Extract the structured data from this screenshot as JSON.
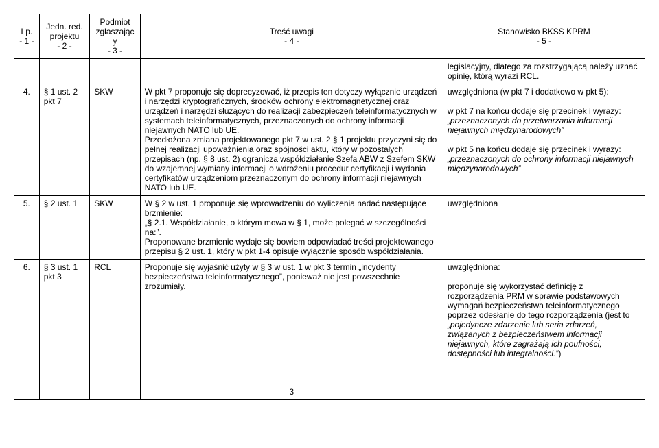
{
  "header": {
    "c1a": "Lp.",
    "c1b": "- 1 -",
    "c2a": "Jedn. red. projektu",
    "c2b": "- 2 -",
    "c3a": "Podmiot zgłaszający",
    "c3b": "- 3 -",
    "c4a": "Treść uwagi",
    "c4b": "- 4 -",
    "c5a": "Stanowisko BKSS KPRM",
    "c5b": "- 5 -"
  },
  "r0": {
    "stan": "legislacyjny, dlatego za rozstrzygającą należy uznać opinię, którą wyrazi RCL."
  },
  "r1": {
    "lp": "4.",
    "jed": "§ 1 ust. 2 pkt 7",
    "pod": "SKW",
    "tresc": "W pkt 7 proponuje się doprecyzować, iż przepis ten dotyczy wyłącznie urządzeń i narzędzi kryptograficznych, środków ochrony elektromagnetycznej oraz urządzeń i narzędzi służących do realizacji zabezpieczeń teleinformatycznych w systemach teleinformatycznych, przeznaczonych do ochrony informacji niejawnych NATO lub UE.\nPrzedłożona zmiana projektowanego pkt 7 w ust. 2 § 1 projektu przyczyni się do pełnej realizacji upoważnienia oraz spójności aktu, który w pozostałych przepisach (np. § 8 ust. 2) ogranicza współdziałanie Szefa ABW z Szefem SKW do wzajemnej wymiany informacji o wdrożeniu procedur certyfikacji i wydania certyfikatów urządzeniom przeznaczonym do ochrony informacji niejawnych NATO lub UE.",
    "stan_l1": "uwzględniona (w pkt 7 i dodatkowo w pkt 5):",
    "stan_l2a": "w pkt 7 na końcu dodaje się przecinek i wyrazy: ",
    "stan_l2b": "„przeznaczonych do przetwarzania informacji niejawnych międzynarodowych”",
    "stan_l3a": "w pkt 5 na końcu dodaje się przecinek i wyrazy: ",
    "stan_l3b": "„przeznaczonych do ochrony informacji niejawnych międzynarodowych”"
  },
  "r2": {
    "lp": "5.",
    "jed": "§ 2 ust. 1",
    "pod": "SKW",
    "tresc": "W § 2 w ust. 1 proponuje się wprowadzeniu do wyliczenia nadać następujące brzmienie:\n„§ 2.1. Współdziałanie, o którym mowa w § 1, może polegać w szczególności na:”.\nProponowane brzmienie wydaje się bowiem odpowiadać treści projektowanego przepisu § 2 ust. 1, który w pkt 1-4 opisuje wyłącznie sposób współdziałania.",
    "stan": "uwzględniona"
  },
  "r3": {
    "lp": "6.",
    "jed": "§ 3 ust. 1 pkt 3",
    "pod": "RCL",
    "tresc": "Proponuje się wyjaśnić użyty w § 3 w ust. 1 w pkt 3 termin „incydenty bezpieczeństwa teleinformatycznego”, ponieważ nie jest powszechnie zrozumiały.",
    "stan_l1": "uwzględniona:",
    "stan_l2a": "proponuje się wykorzystać definicję z rozporządzenia PRM w sprawie podstawowych wymagań bezpieczeństwa teleinformatycznego poprzez odesłanie do tego rozporządzenia (jest to ",
    "stan_l2b": "„pojedyncze zdarzenie lub seria zdarzeń, związanych z bezpieczeństwem informacji niejawnych, które zagrażają ich poufności, dostępności lub integralności.”",
    "stan_l2c": ")"
  },
  "pagenum": "3"
}
